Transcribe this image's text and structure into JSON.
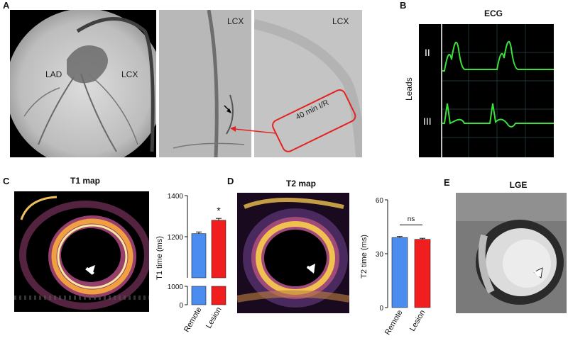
{
  "panels": {
    "a": {
      "letter": "A",
      "lad_label": "LAD",
      "lcx_label": "LCX",
      "lcx_label_2": "LCX",
      "lcx_label_3": "LCX",
      "ir_label": "40 min I/R"
    },
    "b": {
      "letter": "B",
      "title": "ECG",
      "axis_label": "Leads",
      "lead_1": "II",
      "lead_2": "III"
    },
    "c": {
      "letter": "C",
      "title": "T1 map"
    },
    "d": {
      "letter": "D",
      "title": "T2 map"
    },
    "e": {
      "letter": "E",
      "title": "LGE"
    }
  },
  "chart_data": [
    {
      "type": "bar",
      "panel": "C",
      "categories": [
        "Remote",
        "Lesion"
      ],
      "values": [
        1215,
        1280
      ],
      "errors": [
        8,
        9
      ],
      "colors": [
        "#4a8cf0",
        "#f01e1e"
      ],
      "ylabel": "T1 time (ms)",
      "yticks_lower": [
        "0",
        "1000"
      ],
      "yticks_upper": [
        "1200",
        "1400"
      ],
      "ylim_lower": [
        0,
        1000
      ],
      "ylim_upper": [
        1000,
        1400
      ],
      "axis_break": true,
      "annotation": "*"
    },
    {
      "type": "bar",
      "panel": "D",
      "categories": [
        "Remote",
        "Lesion"
      ],
      "values": [
        39,
        38
      ],
      "errors": [
        0.6,
        0.6
      ],
      "colors": [
        "#4a8cf0",
        "#f01e1e"
      ],
      "ylabel": "T2 time (ms)",
      "yticks": [
        "0",
        "30",
        "60"
      ],
      "ylim": [
        0,
        60
      ],
      "annotation": "ns"
    }
  ]
}
